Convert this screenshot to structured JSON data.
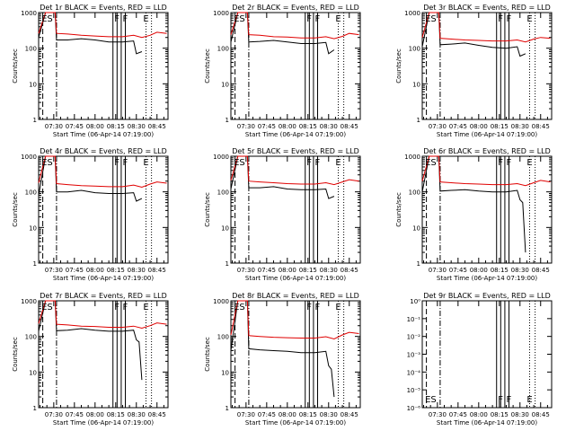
{
  "figure": {
    "xlabel": "Start Time (06-Apr-14 07:19:00)",
    "ylabel": "Counts/sec",
    "time_ticks": [
      "07:30",
      "07:45",
      "08:00",
      "08:15",
      "08:30",
      "08:45"
    ],
    "log_tick_labels": [
      "1",
      "10",
      "100",
      "1000"
    ],
    "det9_tick_labels": [
      "10⁰",
      "10⁻¹",
      "10⁻²",
      "10⁻³",
      "10⁻⁴",
      "10⁻⁵",
      "10⁻⁶"
    ],
    "marker_labels": [
      "ES",
      "F",
      "F",
      "E"
    ],
    "colors": {
      "events": "#000000",
      "lld": "#e00000",
      "axes": "#000000"
    }
  },
  "chart_data": [
    {
      "type": "line",
      "title": "Det 1r BLACK = Events, RED = LLD",
      "xlabel": "Start Time (06-Apr-14 07:19:00)",
      "ylabel": "Counts/sec",
      "xlim": [
        "07:19",
        "08:53"
      ],
      "ylim": [
        1,
        1000
      ],
      "yscale": "log",
      "series": [
        {
          "name": "Events",
          "x": [
            "07:19",
            "07:24",
            "07:26",
            "07:31",
            "07:32",
            "07:40",
            "07:50",
            "08:00",
            "08:10",
            "08:20",
            "08:28",
            "08:30",
            "08:34"
          ],
          "values": [
            200,
            1000,
            1000,
            1000,
            170,
            170,
            185,
            170,
            150,
            150,
            160,
            70,
            80
          ]
        },
        {
          "name": "LLD",
          "x": [
            "07:19",
            "07:24",
            "07:26",
            "07:31",
            "07:32",
            "07:40",
            "07:50",
            "08:00",
            "08:10",
            "08:20",
            "08:28",
            "08:34",
            "08:40",
            "08:45",
            "08:52"
          ],
          "values": [
            260,
            1000,
            1000,
            1000,
            260,
            250,
            230,
            220,
            210,
            210,
            230,
            200,
            230,
            280,
            260
          ]
        }
      ],
      "markers": [
        {
          "label": "ES",
          "x": "07:21"
        },
        {
          "label": "F",
          "x": "08:14"
        },
        {
          "label": "F",
          "x": "08:20"
        },
        {
          "label": "E",
          "x": "08:35"
        }
      ]
    },
    {
      "type": "line",
      "title": "Det 2r BLACK = Events, RED = LLD",
      "xlabel": "Start Time (06-Apr-14 07:19:00)",
      "ylabel": "Counts/sec",
      "xlim": [
        "07:19",
        "08:53"
      ],
      "ylim": [
        1,
        1000
      ],
      "yscale": "log",
      "series": [
        {
          "name": "Events",
          "x": [
            "07:19",
            "07:24",
            "07:26",
            "07:31",
            "07:32",
            "07:40",
            "07:50",
            "08:00",
            "08:10",
            "08:20",
            "08:28",
            "08:30",
            "08:34"
          ],
          "values": [
            150,
            1000,
            1000,
            1000,
            150,
            155,
            165,
            150,
            135,
            135,
            145,
            70,
            90
          ]
        },
        {
          "name": "LLD",
          "x": [
            "07:19",
            "07:24",
            "07:26",
            "07:31",
            "07:32",
            "07:40",
            "07:50",
            "08:00",
            "08:10",
            "08:20",
            "08:28",
            "08:34",
            "08:40",
            "08:45",
            "08:52"
          ],
          "values": [
            240,
            1000,
            1000,
            1000,
            240,
            230,
            210,
            205,
            195,
            195,
            210,
            185,
            215,
            260,
            240
          ]
        }
      ],
      "markers": [
        {
          "label": "ES",
          "x": "07:21"
        },
        {
          "label": "F",
          "x": "08:14"
        },
        {
          "label": "F",
          "x": "08:20"
        },
        {
          "label": "E",
          "x": "08:35"
        }
      ]
    },
    {
      "type": "line",
      "title": "Det 3r BLACK = Events, RED = LLD",
      "xlabel": "Start Time (06-Apr-14 07:19:00)",
      "ylabel": "Counts/sec",
      "xlim": [
        "07:19",
        "08:53"
      ],
      "ylim": [
        1,
        1000
      ],
      "yscale": "log",
      "series": [
        {
          "name": "Events",
          "x": [
            "07:19",
            "07:24",
            "07:26",
            "07:31",
            "07:32",
            "07:40",
            "07:50",
            "08:00",
            "08:10",
            "08:20",
            "08:28",
            "08:30",
            "08:34"
          ],
          "values": [
            110,
            1000,
            1000,
            1000,
            125,
            130,
            140,
            120,
            105,
            100,
            110,
            60,
            70
          ]
        },
        {
          "name": "LLD",
          "x": [
            "07:19",
            "07:24",
            "07:26",
            "07:31",
            "07:32",
            "07:40",
            "07:50",
            "08:00",
            "08:10",
            "08:20",
            "08:28",
            "08:34",
            "08:40",
            "08:45",
            "08:52"
          ],
          "values": [
            200,
            1000,
            1000,
            1000,
            190,
            180,
            170,
            165,
            160,
            160,
            170,
            150,
            180,
            200,
            190
          ]
        }
      ],
      "markers": [
        {
          "label": "ES",
          "x": "07:21"
        },
        {
          "label": "F",
          "x": "08:14"
        },
        {
          "label": "F",
          "x": "08:20"
        },
        {
          "label": "E",
          "x": "08:35"
        }
      ]
    },
    {
      "type": "line",
      "title": "Det 4r BLACK = Events, RED = LLD",
      "xlabel": "Start Time (06-Apr-14 07:19:00)",
      "ylabel": "Counts/sec",
      "xlim": [
        "07:19",
        "08:53"
      ],
      "ylim": [
        1,
        1000
      ],
      "yscale": "log",
      "series": [
        {
          "name": "Events",
          "x": [
            "07:19",
            "07:24",
            "07:26",
            "07:31",
            "07:32",
            "07:40",
            "07:50",
            "08:00",
            "08:10",
            "08:20",
            "08:28",
            "08:30",
            "08:34"
          ],
          "values": [
            80,
            1000,
            1000,
            1000,
            100,
            100,
            110,
            95,
            90,
            90,
            95,
            55,
            65
          ]
        },
        {
          "name": "LLD",
          "x": [
            "07:19",
            "07:24",
            "07:26",
            "07:31",
            "07:32",
            "07:40",
            "07:50",
            "08:00",
            "08:10",
            "08:20",
            "08:28",
            "08:34",
            "08:40",
            "08:45",
            "08:52"
          ],
          "values": [
            180,
            1000,
            1000,
            1000,
            170,
            160,
            150,
            145,
            140,
            140,
            155,
            135,
            165,
            190,
            175
          ]
        }
      ],
      "markers": [
        {
          "label": "ES",
          "x": "07:21"
        },
        {
          "label": "F",
          "x": "08:14"
        },
        {
          "label": "F",
          "x": "08:20"
        },
        {
          "label": "E",
          "x": "08:35"
        }
      ]
    },
    {
      "type": "line",
      "title": "Det 5r BLACK = Events, RED = LLD",
      "xlabel": "Start Time (06-Apr-14 07:19:00)",
      "ylabel": "Counts/sec",
      "xlim": [
        "07:19",
        "08:53"
      ],
      "ylim": [
        1,
        1000
      ],
      "yscale": "log",
      "series": [
        {
          "name": "Events",
          "x": [
            "07:19",
            "07:24",
            "07:26",
            "07:31",
            "07:32",
            "07:40",
            "07:50",
            "08:00",
            "08:10",
            "08:20",
            "08:28",
            "08:30",
            "08:34"
          ],
          "values": [
            120,
            1000,
            1000,
            1000,
            130,
            130,
            140,
            120,
            115,
            115,
            120,
            65,
            75
          ]
        },
        {
          "name": "LLD",
          "x": [
            "07:19",
            "07:24",
            "07:26",
            "07:31",
            "07:32",
            "07:40",
            "07:50",
            "08:00",
            "08:10",
            "08:20",
            "08:28",
            "08:34",
            "08:40",
            "08:45",
            "08:52"
          ],
          "values": [
            210,
            1000,
            1000,
            1000,
            200,
            190,
            180,
            170,
            165,
            165,
            180,
            160,
            190,
            220,
            200
          ]
        }
      ],
      "markers": [
        {
          "label": "ES",
          "x": "07:21"
        },
        {
          "label": "F",
          "x": "08:14"
        },
        {
          "label": "F",
          "x": "08:20"
        },
        {
          "label": "E",
          "x": "08:35"
        }
      ]
    },
    {
      "type": "line",
      "title": "Det 6r BLACK = Events, RED = LLD",
      "xlabel": "Start Time (06-Apr-14 07:19:00)",
      "ylabel": "Counts/sec",
      "xlim": [
        "07:19",
        "08:53"
      ],
      "ylim": [
        1,
        1000
      ],
      "yscale": "log",
      "series": [
        {
          "name": "Events",
          "x": [
            "07:19",
            "07:24",
            "07:26",
            "07:31",
            "07:32",
            "07:40",
            "07:50",
            "08:00",
            "08:10",
            "08:20",
            "08:28",
            "08:30",
            "08:32",
            "08:34"
          ],
          "values": [
            100,
            1000,
            1000,
            1000,
            105,
            110,
            115,
            105,
            100,
            100,
            110,
            60,
            50,
            2
          ]
        },
        {
          "name": "LLD",
          "x": [
            "07:19",
            "07:24",
            "07:26",
            "07:31",
            "07:32",
            "07:40",
            "07:50",
            "08:00",
            "08:10",
            "08:20",
            "08:28",
            "08:34",
            "08:40",
            "08:45",
            "08:52"
          ],
          "values": [
            200,
            1000,
            1000,
            1000,
            190,
            180,
            170,
            165,
            160,
            160,
            170,
            150,
            180,
            210,
            190
          ]
        }
      ],
      "markers": [
        {
          "label": "ES",
          "x": "07:21"
        },
        {
          "label": "F",
          "x": "08:14"
        },
        {
          "label": "F",
          "x": "08:20"
        },
        {
          "label": "E",
          "x": "08:35"
        }
      ]
    },
    {
      "type": "line",
      "title": "Det 7r BLACK = Events, RED = LLD",
      "xlabel": "Start Time (06-Apr-14 07:19:00)",
      "ylabel": "Counts/sec",
      "xlim": [
        "07:19",
        "08:53"
      ],
      "ylim": [
        1,
        1000
      ],
      "yscale": "log",
      "series": [
        {
          "name": "Events",
          "x": [
            "07:19",
            "07:24",
            "07:26",
            "07:31",
            "07:32",
            "07:40",
            "07:50",
            "08:00",
            "08:10",
            "08:20",
            "08:28",
            "08:30",
            "08:32",
            "08:34"
          ],
          "values": [
            140,
            1000,
            1000,
            1000,
            145,
            150,
            165,
            150,
            140,
            140,
            150,
            80,
            70,
            6
          ]
        },
        {
          "name": "LLD",
          "x": [
            "07:19",
            "07:24",
            "07:26",
            "07:31",
            "07:32",
            "07:40",
            "07:50",
            "08:00",
            "08:10",
            "08:20",
            "08:28",
            "08:34",
            "08:40",
            "08:45",
            "08:52"
          ],
          "values": [
            230,
            1000,
            1000,
            1000,
            220,
            210,
            195,
            190,
            180,
            180,
            195,
            170,
            200,
            240,
            220
          ]
        }
      ],
      "markers": [
        {
          "label": "ES",
          "x": "07:21"
        },
        {
          "label": "F",
          "x": "08:14"
        },
        {
          "label": "F",
          "x": "08:20"
        },
        {
          "label": "E",
          "x": "08:35"
        }
      ]
    },
    {
      "type": "line",
      "title": "Det 8r BLACK = Events, RED = LLD",
      "xlabel": "Start Time (06-Apr-14 07:19:00)",
      "ylabel": "Counts/sec",
      "xlim": [
        "07:19",
        "08:53"
      ],
      "ylim": [
        1,
        1000
      ],
      "yscale": "log",
      "series": [
        {
          "name": "Events",
          "x": [
            "07:19",
            "07:24",
            "07:26",
            "07:31",
            "07:32",
            "07:40",
            "07:50",
            "08:00",
            "08:10",
            "08:20",
            "08:28",
            "08:30",
            "08:32",
            "08:34"
          ],
          "values": [
            40,
            1000,
            1000,
            1000,
            45,
            42,
            40,
            38,
            35,
            35,
            38,
            15,
            12,
            2
          ]
        },
        {
          "name": "LLD",
          "x": [
            "07:19",
            "07:24",
            "07:26",
            "07:31",
            "07:32",
            "07:40",
            "07:50",
            "08:00",
            "08:10",
            "08:20",
            "08:28",
            "08:34",
            "08:40",
            "08:45",
            "08:52"
          ],
          "values": [
            110,
            1000,
            1000,
            1000,
            105,
            100,
            95,
            92,
            90,
            90,
            98,
            85,
            110,
            130,
            120
          ]
        }
      ],
      "markers": [
        {
          "label": "ES",
          "x": "07:21"
        },
        {
          "label": "F",
          "x": "08:14"
        },
        {
          "label": "F",
          "x": "08:20"
        },
        {
          "label": "E",
          "x": "08:35"
        }
      ]
    },
    {
      "type": "line",
      "title": "Det 9r BLACK = Events, RED = LLD",
      "xlabel": "Start Time (06-Apr-14 07:19:00)",
      "ylabel": "",
      "xlim": [
        "07:19",
        "08:53"
      ],
      "ylim": [
        1e-06,
        1
      ],
      "yscale": "log",
      "series": [],
      "markers": [
        {
          "label": "ES",
          "x": "07:21"
        },
        {
          "label": "F",
          "x": "08:14"
        },
        {
          "label": "F",
          "x": "08:20"
        },
        {
          "label": "E",
          "x": "08:35"
        }
      ]
    }
  ]
}
